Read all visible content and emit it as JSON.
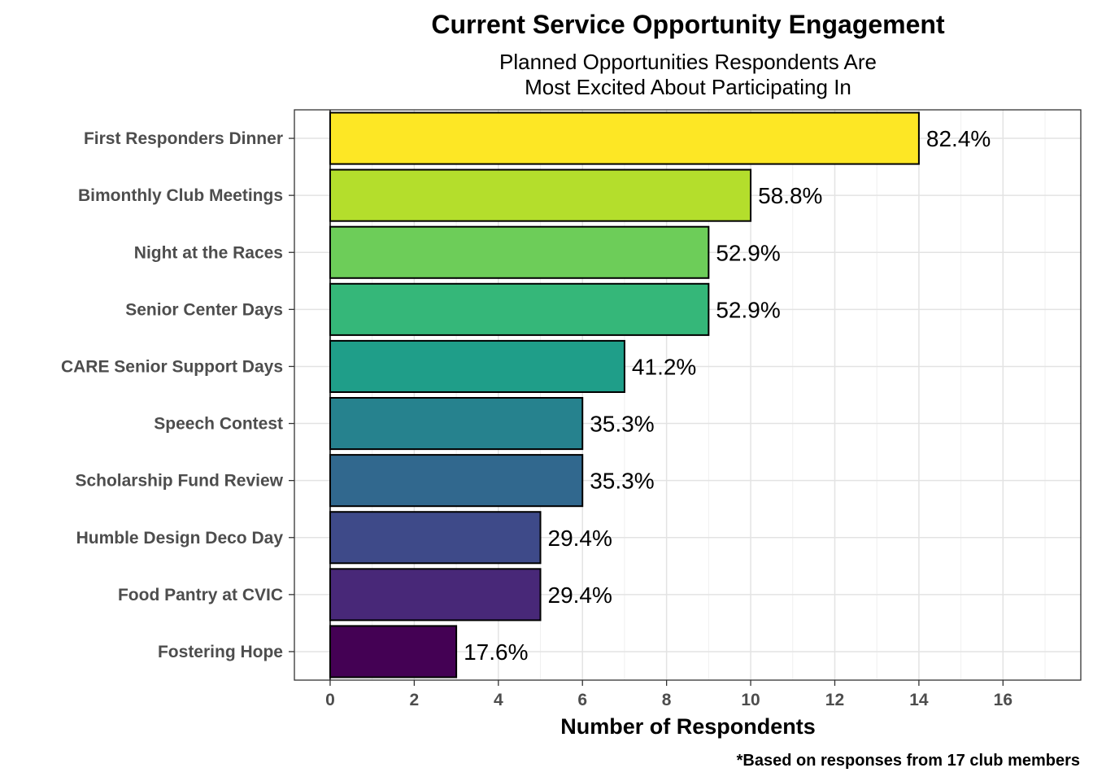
{
  "chart_data": {
    "type": "bar",
    "orientation": "horizontal",
    "title": "Current Service Opportunity Engagement",
    "subtitle_lines": [
      "Planned Opportunities Respondents Are",
      "Most Excited About Participating In"
    ],
    "xlabel": "Number of Respondents",
    "ylabel": "",
    "caption": "*Based on responses from 17 club members",
    "xlim": [
      -0.85,
      17.85
    ],
    "xticks": [
      0,
      2,
      4,
      6,
      8,
      10,
      12,
      14,
      16
    ],
    "grid": true,
    "categories": [
      "First Responders Dinner",
      "Bimonthly Club Meetings",
      "Night at the Races",
      "Senior Center Days",
      "CARE Senior Support Days",
      "Speech Contest",
      "Scholarship Fund Review",
      "Humble Design Deco Day",
      "Food Pantry at CVIC",
      "Fostering Hope"
    ],
    "values": [
      14,
      10,
      9,
      9,
      7,
      6,
      6,
      5,
      5,
      3
    ],
    "labels": [
      "82.4%",
      "58.8%",
      "52.9%",
      "52.9%",
      "41.2%",
      "35.3%",
      "35.3%",
      "29.4%",
      "29.4%",
      "17.6%"
    ],
    "colors": [
      "#FDE725",
      "#B4DE2C",
      "#6DCD59",
      "#35B779",
      "#1F9E89",
      "#26828E",
      "#31688E",
      "#3E4A89",
      "#482878",
      "#440154"
    ]
  }
}
